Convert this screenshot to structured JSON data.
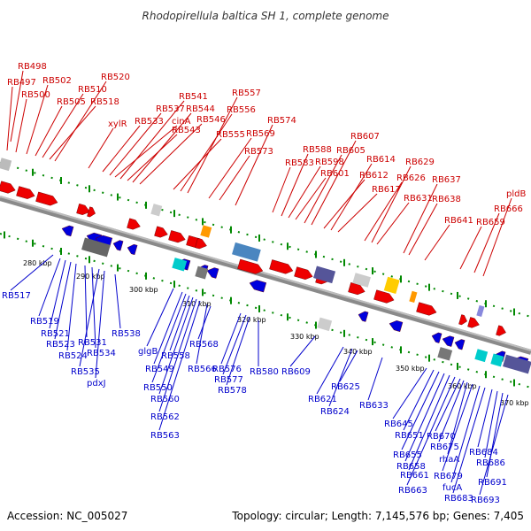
{
  "title": "Rhodopirellula baltica SH 1, complete genome",
  "accession": "Accession: NC_005027",
  "summary": "Topology: circular; Length: 7,145,576 bp; Genes: 7,405",
  "colors": {
    "plus_label": "#cc0000",
    "minus_label": "#0000cc",
    "backbone": "#999999",
    "tick": "#008800"
  },
  "scale_labels": [
    "280 kbp",
    "290 kbp",
    "300 kbp",
    "310 kbp",
    "320 kbp",
    "330 kbp",
    "340 kbp",
    "350 kbp",
    "360 kbp",
    "370 kbp"
  ],
  "plus_labels": [
    "RB498",
    "RB497",
    "RB500",
    "RB502",
    "RB505",
    "RB510",
    "RB518",
    "RB520",
    "xylR",
    "RB533",
    "RB537",
    "cinA",
    "RB541",
    "RB543",
    "RB544",
    "RB546",
    "RB555",
    "RB556",
    "RB557",
    "RB569",
    "RB573",
    "RB574",
    "RB583",
    "RB588",
    "RB598",
    "RB601",
    "RB605",
    "RB607",
    "RB612",
    "RB614",
    "RB617",
    "RB626",
    "RB629",
    "RB631",
    "RB637",
    "RB638",
    "RB641",
    "RB659",
    "RB666",
    "pldB"
  ],
  "minus_labels": [
    "RB517",
    "RB519",
    "RB521",
    "RB523",
    "RB524",
    "RB531",
    "RB534",
    "RB535",
    "pdxJ",
    "RB538",
    "glgB",
    "RB549",
    "RB550",
    "RB558",
    "RB560",
    "RB562",
    "RB563",
    "RB566",
    "RB568",
    "RB576",
    "RB577",
    "RB578",
    "RB580",
    "RB609",
    "RB621",
    "RB624",
    "RB625",
    "RB633",
    "RB645",
    "RB651",
    "RB655",
    "RB658",
    "RB661",
    "RB663",
    "RB670",
    "RB675",
    "rhaA",
    "RB679",
    "fucA",
    "RB683",
    "RB684",
    "RB686",
    "RB691",
    "RB693"
  ]
}
